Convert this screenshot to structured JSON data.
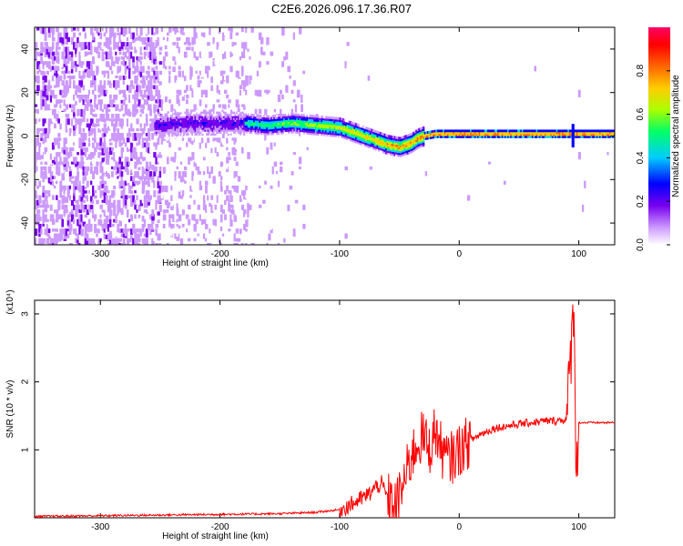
{
  "title": "C2E6.2026.096.17.36.R07",
  "chart_data": [
    {
      "type": "heatmap",
      "xlabel": "Height of straight line (km)",
      "ylabel": "Frequency (Hz)",
      "xlim": [
        -355,
        130
      ],
      "ylim": [
        -50,
        50
      ],
      "xticks": [
        -300,
        -200,
        -100,
        0,
        100
      ],
      "yticks": [
        -40,
        -20,
        0,
        20,
        40
      ],
      "colorbar": {
        "label": "Normalized spectral amplitude",
        "ticks": [
          0.0,
          0.2,
          0.4,
          0.6,
          0.8
        ],
        "range": [
          0,
          1
        ],
        "colors": [
          "#ffffff",
          "#cc99ff",
          "#7700ee",
          "#0000ff",
          "#00ccff",
          "#00ff66",
          "#aaff00",
          "#ffcc00",
          "#ff6600",
          "#ff0000",
          "#ff0066"
        ]
      },
      "ridge": {
        "x": [
          -250,
          -230,
          -200,
          -180,
          -160,
          -140,
          -120,
          -100,
          -90,
          -80,
          -70,
          -60,
          -50,
          -45,
          -40,
          -35,
          -30,
          -20,
          -10,
          0,
          20,
          40,
          60,
          80,
          90,
          95,
          100,
          110,
          130
        ],
        "y": [
          5,
          6,
          6,
          6,
          5,
          6,
          5,
          4,
          2,
          0,
          -2,
          -4,
          -5,
          -4,
          -3,
          -1,
          0,
          1,
          1,
          1,
          1,
          1,
          1,
          1,
          1,
          1,
          1,
          1,
          1
        ]
      }
    },
    {
      "type": "line",
      "xlabel": "Height of straight line (km)",
      "ylabel": "SNR (10 * v/v)",
      "yscale_note": "(x10⁴)",
      "xlim": [
        -355,
        130
      ],
      "ylim": [
        0,
        3.2
      ],
      "xticks": [
        -300,
        -200,
        -100,
        0,
        100
      ],
      "yticks": [
        1,
        2,
        3
      ],
      "series": [
        {
          "color": "#ff0000",
          "x": [
            -355,
            -300,
            -250,
            -200,
            -150,
            -120,
            -100,
            -90,
            -80,
            -75,
            -70,
            -65,
            -60,
            -55,
            -50,
            -45,
            -40,
            -35,
            -30,
            -25,
            -20,
            -15,
            -10,
            -5,
            0,
            10,
            20,
            30,
            40,
            50,
            60,
            70,
            80,
            90,
            94,
            96,
            98,
            100,
            110,
            120,
            130
          ],
          "y": [
            0.02,
            0.03,
            0.04,
            0.05,
            0.06,
            0.08,
            0.12,
            0.2,
            0.3,
            0.35,
            0.45,
            0.5,
            0.3,
            0.15,
            0.3,
            0.6,
            0.9,
            1.1,
            1.2,
            1.0,
            1.3,
            1.0,
            0.85,
            0.9,
            1.0,
            1.15,
            1.25,
            1.32,
            1.35,
            1.38,
            1.4,
            1.42,
            1.43,
            1.45,
            2.6,
            3.2,
            0.5,
            1.4,
            1.4,
            1.4,
            1.4
          ]
        }
      ]
    }
  ]
}
